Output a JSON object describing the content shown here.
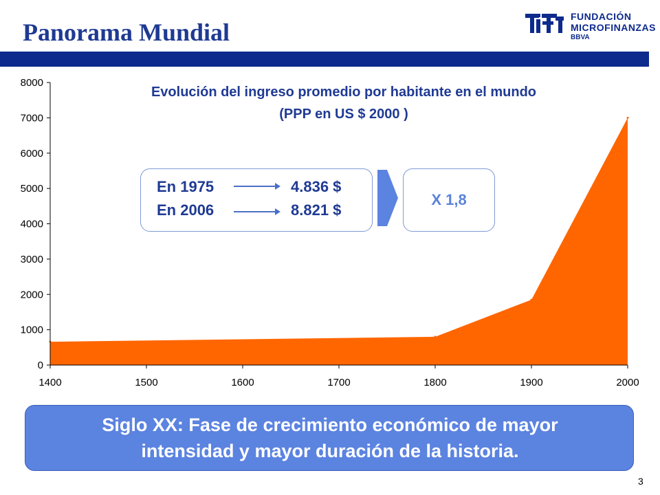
{
  "header": {
    "title": "Panorama Mundial",
    "logo": {
      "line1": "FUNDACIÓN",
      "line2": "MICROFINANZAS",
      "line3": "BBVA"
    }
  },
  "chart_data": {
    "type": "area",
    "title": "Evolución del ingreso promedio por habitante en el mundo",
    "subtitle": "(PPP en US $ 2000 )",
    "x": [
      1400,
      1800,
      1900,
      2000
    ],
    "values": [
      660,
      800,
      1850,
      7000
    ],
    "xlim": [
      1400,
      2000
    ],
    "ylim": [
      0,
      8000
    ],
    "x_ticks": [
      "1400",
      "1500",
      "1600",
      "1700",
      "1800",
      "1900",
      "2000"
    ],
    "y_ticks": [
      "0",
      "1000",
      "2000",
      "3000",
      "4000",
      "5000",
      "6000",
      "7000",
      "8000"
    ],
    "color": "#ff6600",
    "grid": false
  },
  "info_box": {
    "rows": [
      {
        "year": "En 1975",
        "value": "4.836 $"
      },
      {
        "year": "En 2006",
        "value": "8.821 $"
      }
    ],
    "multiplier": "X 1,8"
  },
  "conclusion": {
    "line1": "Siglo XX: Fase de crecimiento económico de mayor",
    "line2": "intensidad y mayor duración de la historia."
  },
  "page_number": "3"
}
